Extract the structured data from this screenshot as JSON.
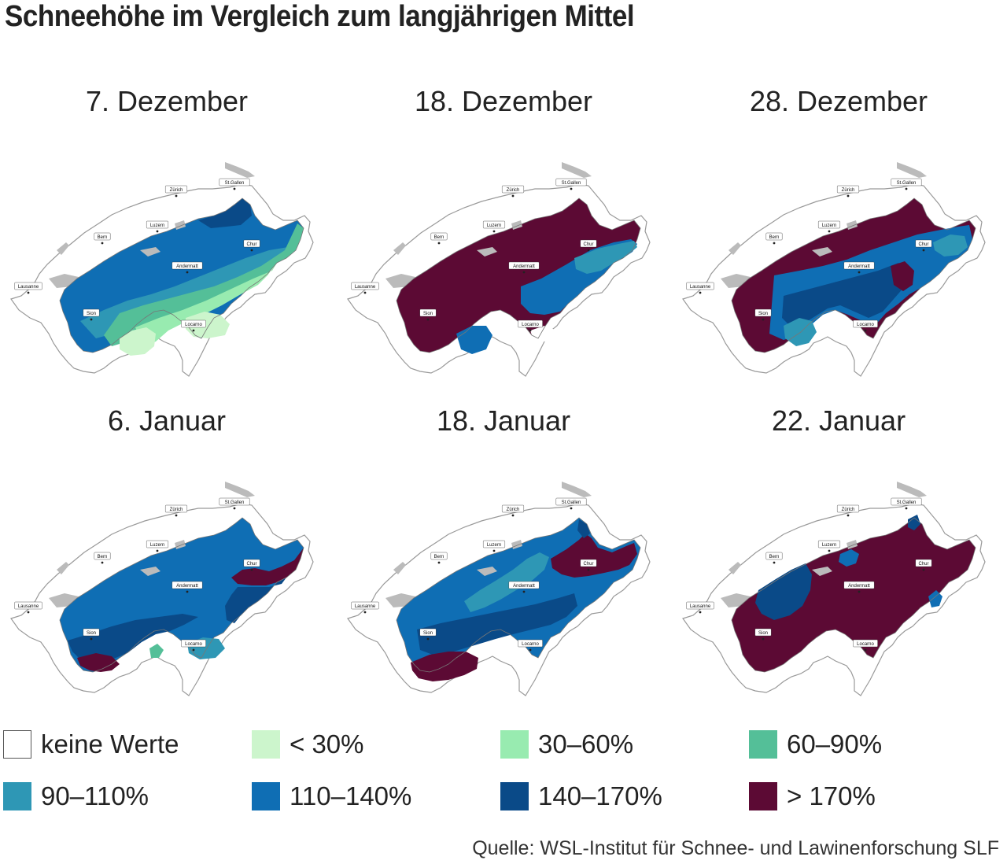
{
  "title": "Schneehöhe im Vergleich zum langjährigen Mittel",
  "colors": {
    "keine": "#ffffff",
    "lt30": "#ccf5cc",
    "c30_60": "#98ebb0",
    "c60_90": "#54bf98",
    "c90_110": "#2e97b5",
    "c110_140": "#0f6eb4",
    "c140_170": "#0a4a88",
    "gt170": "#5c0a34",
    "outline": "#999999"
  },
  "cities": {
    "zurich": "Zürich",
    "stgallen": "St.Gallen",
    "luzern": "Luzern",
    "bern": "Bern",
    "chur": "Chur",
    "andermatt": "Andermatt",
    "lausanne": "Lausanne",
    "sion": "Sion",
    "locarno": "Locarno"
  },
  "maps": [
    {
      "date": "7. Dezember",
      "class_key": "dec07"
    },
    {
      "date": "18. Dezember",
      "class_key": "dec18"
    },
    {
      "date": "28. Dezember",
      "class_key": "dec28"
    },
    {
      "date": "6. Januar",
      "class_key": "jan06"
    },
    {
      "date": "18. Januar",
      "class_key": "jan18"
    },
    {
      "date": "22. Januar",
      "class_key": "jan22"
    }
  ],
  "legend": [
    {
      "label": "keine Werte",
      "color": "#ffffff"
    },
    {
      "label": "< 30%",
      "color": "#ccf5cc"
    },
    {
      "label": "30–60%",
      "color": "#98ebb0"
    },
    {
      "label": "60–90%",
      "color": "#54bf98"
    },
    {
      "label": "90–110%",
      "color": "#2e97b5"
    },
    {
      "label": "110–140%",
      "color": "#0f6eb4"
    },
    {
      "label": "140–170%",
      "color": "#0a4a88"
    },
    {
      "label": "> 170%",
      "color": "#5c0a34"
    }
  ],
  "source": "Quelle: WSL-Institut für Schnee- und Lawinenforschung SLF"
}
